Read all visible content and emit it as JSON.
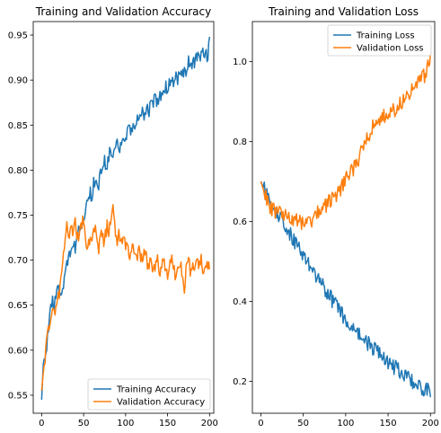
{
  "chart_data": [
    {
      "type": "line",
      "title": "Training and Validation Accuracy",
      "xlabel": "",
      "ylabel": "",
      "xlim": [
        -10,
        205
      ],
      "ylim": [
        0.53,
        0.965
      ],
      "xticks": [
        0,
        50,
        100,
        150,
        200
      ],
      "yticks": [
        0.55,
        0.6,
        0.65,
        0.7,
        0.75,
        0.8,
        0.85,
        0.9,
        0.95
      ],
      "ytick_labels": [
        "0.55",
        "0.60",
        "0.65",
        "0.70",
        "0.75",
        "0.80",
        "0.85",
        "0.90",
        "0.95"
      ],
      "legend": {
        "position": "lower right"
      },
      "series": [
        {
          "name": "Training Accuracy",
          "color": "#1f77b4",
          "points": [
            [
              0,
              0.545
            ],
            [
              2,
              0.585
            ],
            [
              5,
              0.6
            ],
            [
              8,
              0.62
            ],
            [
              10,
              0.645
            ],
            [
              12,
              0.655
            ],
            [
              15,
              0.648
            ],
            [
              18,
              0.66
            ],
            [
              20,
              0.668
            ],
            [
              22,
              0.665
            ],
            [
              25,
              0.67
            ],
            [
              28,
              0.685
            ],
            [
              30,
              0.695
            ],
            [
              32,
              0.7
            ],
            [
              35,
              0.715
            ],
            [
              38,
              0.72
            ],
            [
              40,
              0.71
            ],
            [
              42,
              0.725
            ],
            [
              45,
              0.735
            ],
            [
              48,
              0.74
            ],
            [
              50,
              0.745
            ],
            [
              52,
              0.755
            ],
            [
              55,
              0.77
            ],
            [
              58,
              0.775
            ],
            [
              60,
              0.765
            ],
            [
              62,
              0.785
            ],
            [
              65,
              0.79
            ],
            [
              68,
              0.785
            ],
            [
              70,
              0.8
            ],
            [
              72,
              0.795
            ],
            [
              75,
              0.81
            ],
            [
              78,
              0.805
            ],
            [
              80,
              0.815
            ],
            [
              82,
              0.82
            ],
            [
              85,
              0.81
            ],
            [
              88,
              0.825
            ],
            [
              90,
              0.83
            ],
            [
              92,
              0.82
            ],
            [
              95,
              0.835
            ],
            [
              98,
              0.84
            ],
            [
              100,
              0.83
            ],
            [
              102,
              0.845
            ],
            [
              105,
              0.85
            ],
            [
              108,
              0.84
            ],
            [
              110,
              0.855
            ],
            [
              112,
              0.85
            ],
            [
              115,
              0.86
            ],
            [
              118,
              0.855
            ],
            [
              120,
              0.865
            ],
            [
              122,
              0.86
            ],
            [
              125,
              0.87
            ],
            [
              128,
              0.865
            ],
            [
              130,
              0.875
            ],
            [
              132,
              0.87
            ],
            [
              135,
              0.88
            ],
            [
              138,
              0.875
            ],
            [
              140,
              0.885
            ],
            [
              142,
              0.88
            ],
            [
              145,
              0.89
            ],
            [
              148,
              0.895
            ],
            [
              150,
              0.89
            ],
            [
              152,
              0.895
            ],
            [
              155,
              0.9
            ],
            [
              158,
              0.895
            ],
            [
              160,
              0.905
            ],
            [
              162,
              0.9
            ],
            [
              165,
              0.91
            ],
            [
              168,
              0.905
            ],
            [
              170,
              0.915
            ],
            [
              172,
              0.91
            ],
            [
              175,
              0.92
            ],
            [
              178,
              0.915
            ],
            [
              180,
              0.92
            ],
            [
              182,
              0.918
            ],
            [
              185,
              0.925
            ],
            [
              188,
              0.92
            ],
            [
              190,
              0.925
            ],
            [
              192,
              0.93
            ],
            [
              195,
              0.925
            ],
            [
              198,
              0.93
            ],
            [
              200,
              0.948
            ]
          ]
        },
        {
          "name": "Validation Accuracy",
          "color": "#ff7f0e",
          "points": [
            [
              0,
              0.555
            ],
            [
              2,
              0.575
            ],
            [
              5,
              0.6
            ],
            [
              8,
              0.62
            ],
            [
              10,
              0.635
            ],
            [
              12,
              0.645
            ],
            [
              15,
              0.64
            ],
            [
              18,
              0.65
            ],
            [
              20,
              0.66
            ],
            [
              22,
              0.67
            ],
            [
              25,
              0.69
            ],
            [
              28,
              0.73
            ],
            [
              30,
              0.745
            ],
            [
              32,
              0.72
            ],
            [
              35,
              0.735
            ],
            [
              38,
              0.73
            ],
            [
              40,
              0.74
            ],
            [
              42,
              0.72
            ],
            [
              45,
              0.73
            ],
            [
              48,
              0.74
            ],
            [
              50,
              0.745
            ],
            [
              52,
              0.725
            ],
            [
              55,
              0.71
            ],
            [
              58,
              0.73
            ],
            [
              60,
              0.72
            ],
            [
              62,
              0.74
            ],
            [
              65,
              0.73
            ],
            [
              68,
              0.71
            ],
            [
              70,
              0.735
            ],
            [
              72,
              0.725
            ],
            [
              75,
              0.72
            ],
            [
              78,
              0.74
            ],
            [
              80,
              0.73
            ],
            [
              82,
              0.745
            ],
            [
              85,
              0.76
            ],
            [
              88,
              0.73
            ],
            [
              90,
              0.72
            ],
            [
              92,
              0.73
            ],
            [
              95,
              0.72
            ],
            [
              98,
              0.725
            ],
            [
              100,
              0.71
            ],
            [
              102,
              0.72
            ],
            [
              105,
              0.705
            ],
            [
              108,
              0.715
            ],
            [
              110,
              0.71
            ],
            [
              112,
              0.7
            ],
            [
              115,
              0.71
            ],
            [
              118,
              0.705
            ],
            [
              120,
              0.7
            ],
            [
              122,
              0.71
            ],
            [
              125,
              0.7
            ],
            [
              128,
              0.69
            ],
            [
              130,
              0.7
            ],
            [
              132,
              0.69
            ],
            [
              135,
              0.695
            ],
            [
              138,
              0.7
            ],
            [
              140,
              0.685
            ],
            [
              142,
              0.69
            ],
            [
              145,
              0.7
            ],
            [
              148,
              0.69
            ],
            [
              150,
              0.68
            ],
            [
              152,
              0.695
            ],
            [
              155,
              0.7
            ],
            [
              158,
              0.69
            ],
            [
              160,
              0.68
            ],
            [
              162,
              0.695
            ],
            [
              165,
              0.7
            ],
            [
              168,
              0.685
            ],
            [
              170,
              0.67
            ],
            [
              172,
              0.69
            ],
            [
              175,
              0.7
            ],
            [
              178,
              0.685
            ],
            [
              180,
              0.7
            ],
            [
              182,
              0.69
            ],
            [
              185,
              0.7
            ],
            [
              188,
              0.695
            ],
            [
              190,
              0.7
            ],
            [
              192,
              0.68
            ],
            [
              195,
              0.69
            ],
            [
              198,
              0.695
            ],
            [
              200,
              0.69
            ]
          ]
        }
      ]
    },
    {
      "type": "line",
      "title": "Training and Validation Loss",
      "xlabel": "",
      "ylabel": "",
      "xlim": [
        -10,
        205
      ],
      "ylim": [
        0.12,
        1.1
      ],
      "xticks": [
        0,
        50,
        100,
        150,
        200
      ],
      "yticks": [
        0.2,
        0.4,
        0.6,
        0.8,
        1.0
      ],
      "ytick_labels": [
        "0.2",
        "0.4",
        "0.6",
        "0.8",
        "1.0"
      ],
      "legend": {
        "position": "upper right"
      },
      "series": [
        {
          "name": "Training Loss",
          "color": "#1f77b4",
          "points": [
            [
              0,
              0.7
            ],
            [
              3,
              0.685
            ],
            [
              6,
              0.67
            ],
            [
              10,
              0.655
            ],
            [
              14,
              0.64
            ],
            [
              18,
              0.625
            ],
            [
              22,
              0.615
            ],
            [
              26,
              0.6
            ],
            [
              30,
              0.585
            ],
            [
              34,
              0.57
            ],
            [
              38,
              0.555
            ],
            [
              42,
              0.545
            ],
            [
              46,
              0.53
            ],
            [
              50,
              0.515
            ],
            [
              54,
              0.5
            ],
            [
              58,
              0.49
            ],
            [
              62,
              0.475
            ],
            [
              66,
              0.46
            ],
            [
              70,
              0.445
            ],
            [
              74,
              0.435
            ],
            [
              78,
              0.42
            ],
            [
              82,
              0.41
            ],
            [
              86,
              0.395
            ],
            [
              90,
              0.385
            ],
            [
              94,
              0.375
            ],
            [
              98,
              0.36
            ],
            [
              102,
              0.35
            ],
            [
              106,
              0.34
            ],
            [
              110,
              0.33
            ],
            [
              114,
              0.32
            ],
            [
              118,
              0.31
            ],
            [
              122,
              0.3
            ],
            [
              126,
              0.295
            ],
            [
              130,
              0.285
            ],
            [
              134,
              0.28
            ],
            [
              138,
              0.27
            ],
            [
              142,
              0.265
            ],
            [
              146,
              0.255
            ],
            [
              150,
              0.25
            ],
            [
              154,
              0.24
            ],
            [
              158,
              0.235
            ],
            [
              162,
              0.23
            ],
            [
              166,
              0.22
            ],
            [
              170,
              0.215
            ],
            [
              174,
              0.21
            ],
            [
              178,
              0.2
            ],
            [
              182,
              0.195
            ],
            [
              186,
              0.19
            ],
            [
              190,
              0.185
            ],
            [
              194,
              0.18
            ],
            [
              198,
              0.175
            ],
            [
              200,
              0.16
            ]
          ]
        },
        {
          "name": "Validation Loss",
          "color": "#ff7f0e",
          "points": [
            [
              0,
              0.7
            ],
            [
              3,
              0.68
            ],
            [
              6,
              0.665
            ],
            [
              10,
              0.64
            ],
            [
              14,
              0.63
            ],
            [
              18,
              0.625
            ],
            [
              22,
              0.62
            ],
            [
              26,
              0.615
            ],
            [
              30,
              0.61
            ],
            [
              34,
              0.605
            ],
            [
              38,
              0.6
            ],
            [
              42,
              0.605
            ],
            [
              46,
              0.6
            ],
            [
              50,
              0.595
            ],
            [
              54,
              0.59
            ],
            [
              58,
              0.6
            ],
            [
              62,
              0.61
            ],
            [
              66,
              0.62
            ],
            [
              70,
              0.63
            ],
            [
              74,
              0.635
            ],
            [
              78,
              0.64
            ],
            [
              82,
              0.655
            ],
            [
              86,
              0.66
            ],
            [
              90,
              0.67
            ],
            [
              94,
              0.68
            ],
            [
              98,
              0.695
            ],
            [
              102,
              0.71
            ],
            [
              106,
              0.72
            ],
            [
              110,
              0.735
            ],
            [
              114,
              0.75
            ],
            [
              118,
              0.77
            ],
            [
              122,
              0.79
            ],
            [
              126,
              0.81
            ],
            [
              130,
              0.83
            ],
            [
              134,
              0.845
            ],
            [
              138,
              0.855
            ],
            [
              142,
              0.86
            ],
            [
              146,
              0.865
            ],
            [
              150,
              0.87
            ],
            [
              154,
              0.875
            ],
            [
              158,
              0.88
            ],
            [
              162,
              0.89
            ],
            [
              166,
              0.895
            ],
            [
              170,
              0.905
            ],
            [
              174,
              0.915
            ],
            [
              178,
              0.925
            ],
            [
              182,
              0.935
            ],
            [
              186,
              0.945
            ],
            [
              190,
              0.955
            ],
            [
              194,
              0.97
            ],
            [
              198,
              0.99
            ],
            [
              200,
              1.02
            ]
          ]
        }
      ]
    }
  ]
}
